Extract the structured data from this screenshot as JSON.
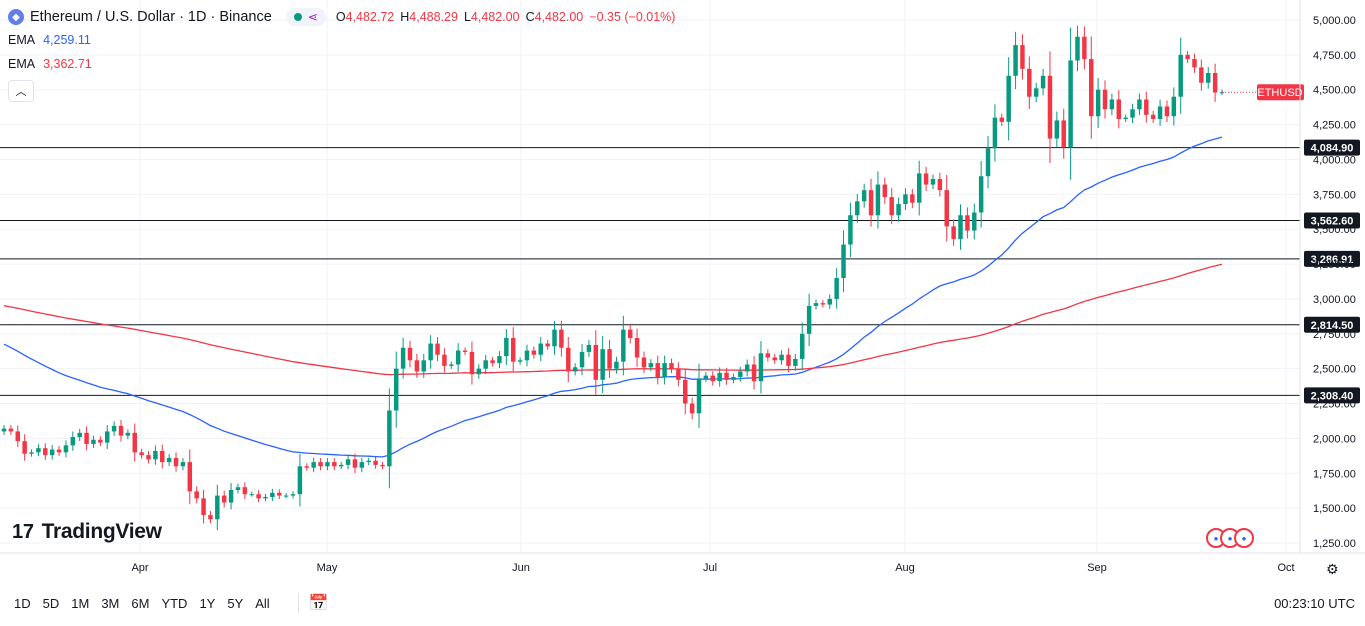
{
  "header": {
    "title": "Ethereum / U.S. Dollar · 1D · Binance",
    "ohlc": [
      {
        "k": "O",
        "v": "4,482.72"
      },
      {
        "k": "H",
        "v": "4,488.29"
      },
      {
        "k": "L",
        "v": "4,482.00"
      },
      {
        "k": "C",
        "v": "4,482.00"
      }
    ],
    "change": "−0.35 (−0.01%)"
  },
  "indicators": [
    {
      "name": "EMA",
      "value": "4,259.11",
      "color": "#2962ff"
    },
    {
      "name": "EMA",
      "value": "3,362.71",
      "color": "#f23645"
    }
  ],
  "brand": "TradingView",
  "ticker_label": "ETHUSD",
  "range_buttons": [
    "1D",
    "5D",
    "1M",
    "3M",
    "6M",
    "YTD",
    "1Y",
    "5Y",
    "All"
  ],
  "clock": "00:23:10 UTC",
  "colors": {
    "up": "#089981",
    "down": "#f23645",
    "ema_fast": "#2962ff",
    "ema_slow": "#f23645"
  },
  "chart_data": {
    "type": "candlestick",
    "y_axis": {
      "min": 1250,
      "max": 5000,
      "ticks": [
        "1,250.00",
        "1,500.00",
        "1,750.00",
        "2,000.00",
        "2,250.00",
        "2,500.00",
        "2,750.00",
        "3,000.00",
        "3,250.00",
        "3,500.00",
        "3,750.00",
        "4,000.00",
        "4,250.00",
        "4,500.00",
        "4,750.00",
        "5,000.00"
      ]
    },
    "x_axis": {
      "labels": [
        "Apr",
        "May",
        "Jun",
        "Jul",
        "Aug",
        "Sep",
        "Oct"
      ]
    },
    "horizontal_levels": [
      {
        "value": 4084.9,
        "label": "4,084.90"
      },
      {
        "value": 3562.6,
        "label": "3,562.60"
      },
      {
        "value": 3286.91,
        "label": "3,286.91"
      },
      {
        "value": 2814.5,
        "label": "2,814.50"
      },
      {
        "value": 2308.4,
        "label": "2,308.40"
      }
    ],
    "last_price": 4482.0,
    "closes": [
      2070,
      2050,
      1980,
      1890,
      1900,
      1930,
      1880,
      1920,
      1900,
      1950,
      2010,
      2040,
      1960,
      1990,
      1970,
      2050,
      2090,
      2020,
      2040,
      1900,
      1880,
      1850,
      1910,
      1830,
      1860,
      1800,
      1830,
      1620,
      1570,
      1450,
      1420,
      1590,
      1540,
      1630,
      1650,
      1600,
      1600,
      1570,
      1580,
      1610,
      1590,
      1590,
      1600,
      1800,
      1790,
      1830,
      1800,
      1830,
      1800,
      1810,
      1850,
      1790,
      1830,
      1840,
      1810,
      1800,
      2200,
      2500,
      2650,
      2560,
      2480,
      2560,
      2680,
      2600,
      2520,
      2530,
      2630,
      2620,
      2460,
      2500,
      2560,
      2540,
      2590,
      2720,
      2550,
      2560,
      2630,
      2600,
      2680,
      2660,
      2780,
      2650,
      2480,
      2510,
      2620,
      2670,
      2420,
      2640,
      2500,
      2550,
      2780,
      2720,
      2580,
      2510,
      2540,
      2440,
      2540,
      2500,
      2420,
      2250,
      2180,
      2430,
      2450,
      2410,
      2470,
      2420,
      2440,
      2480,
      2530,
      2410,
      2610,
      2580,
      2560,
      2600,
      2520,
      2570,
      2750,
      2950,
      2970,
      2960,
      3000,
      3150,
      3390,
      3600,
      3700,
      3780,
      3600,
      3820,
      3730,
      3600,
      3680,
      3750,
      3690,
      3900,
      3820,
      3860,
      3780,
      3520,
      3430,
      3600,
      3490,
      3620,
      3880,
      4080,
      4300,
      4270,
      4600,
      4820,
      4650,
      4450,
      4510,
      4600,
      4150,
      4280,
      4090,
      4710,
      4880,
      4720,
      4310,
      4500,
      4360,
      4430,
      4290,
      4300,
      4360,
      4430,
      4320,
      4290,
      4380,
      4310,
      4450,
      4750,
      4720,
      4660,
      4550,
      4620,
      4480,
      4482
    ],
    "ema_fast": {
      "label": "EMA",
      "last": 4259.11
    },
    "ema_slow": {
      "label": "EMA",
      "last": 3362.71
    }
  }
}
